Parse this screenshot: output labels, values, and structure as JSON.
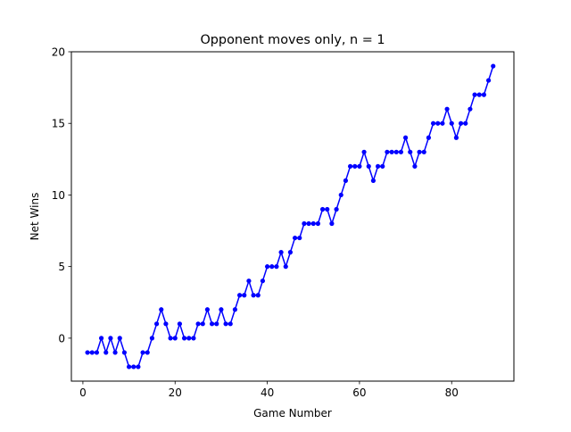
{
  "chart_data": {
    "type": "line",
    "title": "Opponent moves only, n = 1",
    "xlabel": "Game Number",
    "ylabel": "Net Wins",
    "xlim": [
      -2.5,
      93.5
    ],
    "ylim": [
      -3.0,
      20.0
    ],
    "xticks": [
      0,
      20,
      40,
      60,
      80
    ],
    "yticks": [
      0,
      5,
      10,
      15,
      20
    ],
    "grid": false,
    "color": "#0000ff",
    "series": [
      {
        "x": [
          1,
          2,
          3,
          4,
          5,
          6,
          7,
          8,
          9,
          10,
          11,
          12,
          13,
          14,
          15,
          16,
          17,
          18,
          19,
          20,
          21,
          22,
          23,
          24,
          25,
          26,
          27,
          28,
          29,
          30,
          31,
          32,
          33,
          34,
          35,
          36,
          37,
          38,
          39,
          40,
          41,
          42,
          43,
          44,
          45,
          46,
          47,
          48,
          49,
          50,
          51,
          52,
          53,
          54,
          55,
          56,
          57,
          58,
          59,
          60,
          61,
          62,
          63,
          64,
          65,
          66,
          67,
          68,
          69,
          70,
          71,
          72,
          73,
          74,
          75,
          76,
          77,
          78,
          79,
          80,
          81,
          82,
          83,
          84,
          85,
          86,
          87,
          88,
          89
        ],
        "y": [
          -1,
          -1,
          -1,
          0,
          -1,
          0,
          -1,
          0,
          -1,
          -2,
          -2,
          -2,
          -1,
          -1,
          0,
          1,
          2,
          1,
          0,
          0,
          1,
          0,
          0,
          0,
          1,
          1,
          2,
          1,
          1,
          2,
          1,
          1,
          2,
          3,
          3,
          4,
          3,
          3,
          4,
          5,
          5,
          5,
          6,
          5,
          6,
          7,
          7,
          8,
          8,
          8,
          8,
          9,
          9,
          8,
          9,
          10,
          11,
          12,
          12,
          12,
          13,
          12,
          11,
          12,
          12,
          13,
          13,
          13,
          13,
          14,
          13,
          12,
          13,
          13,
          14,
          15,
          15,
          15,
          16,
          15,
          14,
          15,
          15,
          16,
          17,
          17,
          17,
          18,
          19
        ]
      }
    ]
  }
}
